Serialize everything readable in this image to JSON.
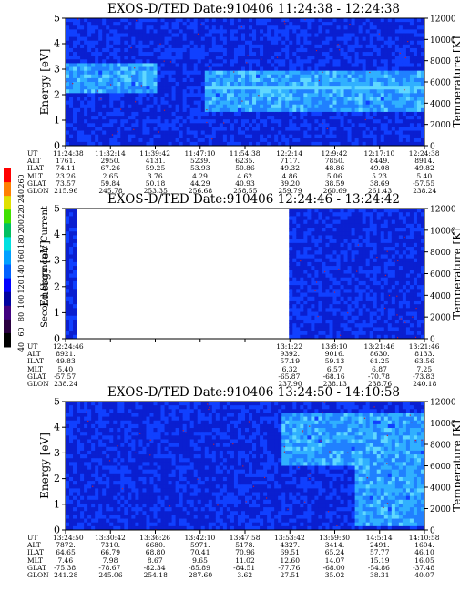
{
  "chart_data": [
    {
      "type": "heatmap",
      "title": "EXOS-D/TED   Date:910406   11:24:38 - 12:24:38",
      "ylabel": "Energy [eV]",
      "y2label": "Temperature [K]",
      "ylim": [
        0,
        5
      ],
      "y2lim": [
        0,
        12000
      ],
      "yticks": [
        "0",
        "1",
        "2",
        "3",
        "4",
        "5"
      ],
      "y2ticks": [
        "0",
        "2000",
        "4000",
        "6000",
        "8000",
        "10000",
        "12000"
      ],
      "row_labels": [
        "UT",
        "ALT",
        "ILAT",
        "MLT",
        "GLAT",
        "GLON"
      ],
      "columns": [
        [
          "11:24:38",
          "1761.",
          "74.11",
          "23.26",
          "73.57",
          "215.96"
        ],
        [
          "11:32:14",
          "2950.",
          "67.26",
          "2.65",
          "59.84",
          "245.78"
        ],
        [
          "11:39:42",
          "4131.",
          "59.25",
          "3.76",
          "50.18",
          "253.35"
        ],
        [
          "11:47:10",
          "5239.",
          "53.93",
          "4.29",
          "44.29",
          "256.68"
        ],
        [
          "11:54:38",
          "6235.",
          "50.86",
          "4.62",
          "40.93",
          "258.55"
        ],
        [
          "12:2:14",
          "7117.",
          "49.32",
          "4.86",
          "39.20",
          "259.79"
        ],
        [
          "12:9:42",
          "7850.",
          "48.86",
          "5.06",
          "38.59",
          "260.69"
        ],
        [
          "12:17:10",
          "8449.",
          "49.08",
          "5.23",
          "38.69",
          "261.43"
        ],
        [
          "12:24:38",
          "8914.",
          "49.82",
          "5.40",
          "-57.55",
          "238.24"
        ]
      ],
      "bands": [
        {
          "x": [
            0.0,
            0.25
          ],
          "y": [
            2.0,
            3.2
          ]
        },
        {
          "x": [
            0.38,
            1.0
          ],
          "y": [
            2.2,
            3.0
          ]
        },
        {
          "x": [
            0.38,
            1.0
          ],
          "y": [
            1.3,
            2.4
          ]
        }
      ],
      "missing": [],
      "colormap": "dark blue to cyan, red = high"
    },
    {
      "type": "heatmap",
      "title": "EXOS-D/TED   Date:910406   12:24:46 - 13:24:42",
      "ylabel": "Energy [eV]",
      "y2label": "Temperature [K]",
      "ylim": [
        0,
        5
      ],
      "y2lim": [
        0,
        12000
      ],
      "yticks": [
        "0",
        "1",
        "2",
        "3",
        "4",
        "5"
      ],
      "y2ticks": [
        "0",
        "2000",
        "4000",
        "6000",
        "8000",
        "10000",
        "12000"
      ],
      "row_labels": [
        "UT",
        "ALT",
        "ILAT",
        "MLT",
        "GLAT",
        "GLON"
      ],
      "columns": [
        [
          "12:24:46",
          "8921.",
          "49.83",
          "5.40",
          "-57.57",
          "238.24"
        ],
        [
          "",
          "",
          "",
          "",
          "",
          ""
        ],
        [
          "",
          "",
          "",
          "",
          "",
          ""
        ],
        [
          "",
          "",
          "",
          "",
          "",
          ""
        ],
        [
          "",
          "",
          "",
          "",
          "",
          ""
        ],
        [
          "13:1:22",
          "9392.",
          "57.19",
          "6.32",
          "-65.87",
          "237.90"
        ],
        [
          "13:8:10",
          "9016.",
          "59.13",
          "6.57",
          "-68.16",
          "238.13"
        ],
        [
          "13:21:46",
          "8630.",
          "61.25",
          "6.87",
          "-70.78",
          "238.76"
        ],
        [
          "13:21:46",
          "8133.",
          "63.56",
          "7.25",
          "-73.83",
          "240.18"
        ]
      ],
      "bands": [],
      "missing": [
        [
          0.03,
          0.62
        ]
      ],
      "colormap": "dark blue to cyan, red = high"
    },
    {
      "type": "heatmap",
      "title": "EXOS-D/TED   Date:910406   13:24:50 - 14:10:58",
      "ylabel": "Energy [eV]",
      "y2label": "Temperature [K]",
      "ylim": [
        0,
        5
      ],
      "y2lim": [
        0,
        12000
      ],
      "yticks": [
        "0",
        "1",
        "2",
        "3",
        "4",
        "5"
      ],
      "y2ticks": [
        "0",
        "2000",
        "4000",
        "6000",
        "8000",
        "10000",
        "12000"
      ],
      "row_labels": [
        "UT",
        "ALT",
        "ILAT",
        "MLT",
        "GLAT",
        "GLON"
      ],
      "columns": [
        [
          "13:24:50",
          "7872.",
          "64.65",
          "7.46",
          "-75.38",
          "241.28"
        ],
        [
          "13:30:42",
          "7310.",
          "66.79",
          "7.98",
          "-78.67",
          "245.06"
        ],
        [
          "13:36:26",
          "6680.",
          "68.80",
          "8.67",
          "-82.34",
          "254.18"
        ],
        [
          "13:42:10",
          "5971.",
          "70.41",
          "9.65",
          "-85.89",
          "287.60"
        ],
        [
          "13:47:58",
          "5178.",
          "70.96",
          "11.02",
          "-84.51",
          "3.62"
        ],
        [
          "13:53:42",
          "4327.",
          "69.51",
          "12.60",
          "-77.76",
          "27.51"
        ],
        [
          "13:59:30",
          "3414.",
          "65.24",
          "14.07",
          "-68.00",
          "35.02"
        ],
        [
          "14:5:14",
          "2491.",
          "57.77",
          "15.19",
          "-54.86",
          "38.31"
        ],
        [
          "14:10:58",
          "1604.",
          "46.10",
          "16.05",
          "-37.48",
          "40.07"
        ]
      ],
      "bands": [
        {
          "x": [
            0.6,
            1.0
          ],
          "y": [
            2.5,
            4.5
          ]
        },
        {
          "x": [
            0.8,
            1.0
          ],
          "y": [
            0.2,
            2.5
          ]
        }
      ],
      "missing": [],
      "colormap": "dark blue to cyan, red = high"
    }
  ],
  "colorbar": {
    "label": "Second Harmonic Current",
    "ticks": [
      "40",
      "60",
      "80",
      "100",
      "120",
      "140",
      "160",
      "180",
      "200",
      "220",
      "240",
      "260"
    ],
    "colors": [
      "#000000",
      "#2a0040",
      "#400080",
      "#0000a0",
      "#0000ff",
      "#0060ff",
      "#00a0ff",
      "#00e0e0",
      "#00c060",
      "#40e000",
      "#e0e000",
      "#ff8000",
      "#ff0000"
    ]
  }
}
